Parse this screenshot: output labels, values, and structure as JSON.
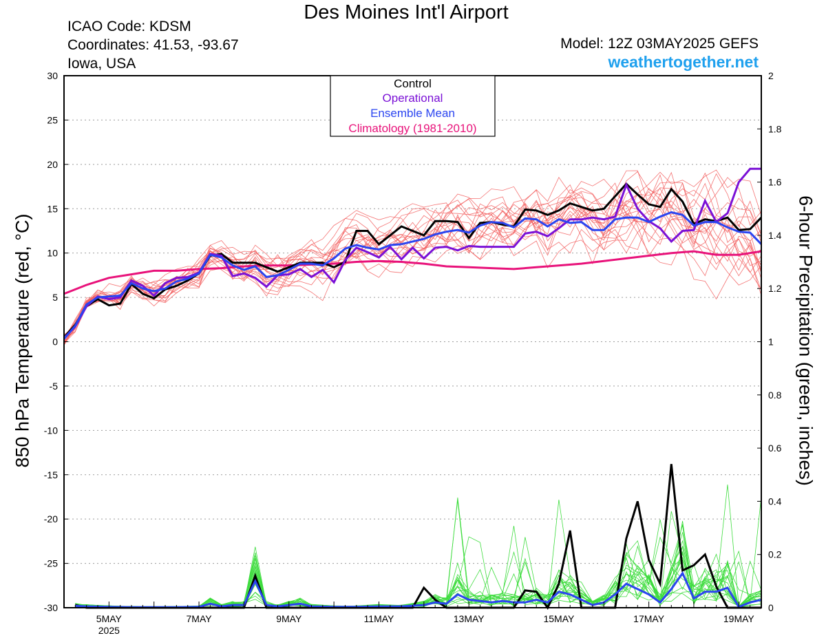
{
  "header": {
    "title": "Des Moines Int'l Airport",
    "icao": "ICAO Code: KDSM",
    "coordinates": "Coordinates: 41.53, -93.67",
    "region": "Iowa, USA",
    "model": "Model: 12Z 03MAY2025 GEFS",
    "site": "weathertogether.net"
  },
  "colors": {
    "members_temp": "#f25a5a",
    "members_precip": "#3ddc3d",
    "control": "#000000",
    "operational": "#7a10d6",
    "ensemble_mean": "#2a44f0",
    "climatology": "#e8127a",
    "grid": "#9a9a9a",
    "site": "#1ea0ee"
  },
  "chart_data": {
    "type": "line",
    "title": "Des Moines Int'l Airport",
    "xlabel": "",
    "ylabel_left": "850 hPa Temperature (red, °C)",
    "ylabel_right": "6-hour Precipitation (green, inches)",
    "x_unit": "days since 2025-05-03 12Z",
    "xlim": [
      0.5,
      16.0
    ],
    "ylim_left": [
      -30,
      30
    ],
    "ylim_right": [
      0,
      2
    ],
    "y_ticks_left": [
      30,
      25,
      20,
      15,
      10,
      5,
      0,
      -5,
      -10,
      -15,
      -20,
      -25,
      -30
    ],
    "y_ticks_right": [
      2,
      1.8,
      1.6,
      1.4,
      1.2,
      1,
      0.8,
      0.6,
      0.4,
      0.2,
      0
    ],
    "x_ticks": [
      {
        "x": 1.5,
        "label": "5MAY",
        "sub": "2025"
      },
      {
        "x": 3.5,
        "label": "7MAY",
        "sub": ""
      },
      {
        "x": 5.5,
        "label": "9MAY",
        "sub": ""
      },
      {
        "x": 7.5,
        "label": "11MAY",
        "sub": ""
      },
      {
        "x": 9.5,
        "label": "13MAY",
        "sub": ""
      },
      {
        "x": 11.5,
        "label": "15MAY",
        "sub": ""
      },
      {
        "x": 13.5,
        "label": "17MAY",
        "sub": ""
      },
      {
        "x": 15.5,
        "label": "19MAY",
        "sub": ""
      }
    ],
    "grid": "horizontal dotted",
    "legend": {
      "position": "top-center",
      "entries": [
        {
          "label": "Control",
          "color": "#000000"
        },
        {
          "label": "Operational",
          "color": "#7a10d6"
        },
        {
          "label": "Ensemble Mean",
          "color": "#2a44f0"
        },
        {
          "label": "Climatology (1981-2010)",
          "color": "#e8127a"
        }
      ]
    },
    "temperature_series": {
      "control": [
        [
          0.5,
          0.5
        ],
        [
          0.75,
          1.9
        ],
        [
          1.0,
          4.0
        ],
        [
          1.25,
          4.8
        ],
        [
          1.5,
          4.1
        ],
        [
          1.75,
          4.3
        ],
        [
          2.0,
          6.5
        ],
        [
          2.25,
          5.4
        ],
        [
          2.5,
          4.9
        ],
        [
          2.75,
          5.9
        ],
        [
          3.0,
          6.3
        ],
        [
          3.25,
          6.9
        ],
        [
          3.5,
          7.7
        ],
        [
          3.75,
          9.7
        ],
        [
          4.0,
          9.9
        ],
        [
          4.25,
          8.9
        ],
        [
          4.5,
          8.9
        ],
        [
          4.75,
          8.9
        ],
        [
          5.0,
          8.4
        ],
        [
          5.25,
          7.9
        ],
        [
          5.5,
          8.4
        ],
        [
          5.75,
          8.9
        ],
        [
          6.0,
          8.9
        ],
        [
          6.25,
          8.9
        ],
        [
          6.5,
          8.4
        ],
        [
          6.75,
          9.0
        ],
        [
          7.0,
          12.5
        ],
        [
          7.25,
          12.5
        ],
        [
          7.5,
          11.0
        ],
        [
          7.75,
          12.0
        ],
        [
          8.0,
          13.0
        ],
        [
          8.25,
          12.5
        ],
        [
          8.5,
          12.0
        ],
        [
          8.75,
          13.6
        ],
        [
          9.0,
          13.6
        ],
        [
          9.25,
          13.5
        ],
        [
          9.5,
          11.7
        ],
        [
          9.75,
          13.4
        ],
        [
          10.0,
          13.5
        ],
        [
          10.25,
          13.2
        ],
        [
          10.5,
          13.0
        ],
        [
          10.75,
          14.9
        ],
        [
          11.0,
          14.8
        ],
        [
          11.25,
          14.3
        ],
        [
          11.5,
          14.8
        ],
        [
          11.75,
          15.6
        ],
        [
          12.0,
          15.2
        ],
        [
          12.25,
          14.8
        ],
        [
          12.5,
          15.0
        ],
        [
          12.75,
          16.4
        ],
        [
          13.0,
          17.8
        ],
        [
          13.25,
          16.6
        ],
        [
          13.5,
          15.5
        ],
        [
          13.75,
          15.2
        ],
        [
          14.0,
          17.2
        ],
        [
          14.25,
          15.8
        ],
        [
          14.5,
          13.3
        ],
        [
          14.75,
          13.8
        ],
        [
          15.0,
          13.6
        ],
        [
          15.25,
          14.0
        ],
        [
          15.5,
          12.6
        ],
        [
          15.75,
          12.7
        ],
        [
          16.0,
          14.0
        ]
      ],
      "operational": [
        [
          0.5,
          0.4
        ],
        [
          0.75,
          1.7
        ],
        [
          1.0,
          4.0
        ],
        [
          1.25,
          5.1
        ],
        [
          1.5,
          4.8
        ],
        [
          1.75,
          5.0
        ],
        [
          2.0,
          6.9
        ],
        [
          2.25,
          6.3
        ],
        [
          2.5,
          5.2
        ],
        [
          2.75,
          6.6
        ],
        [
          3.0,
          7.2
        ],
        [
          3.25,
          7.3
        ],
        [
          3.5,
          7.8
        ],
        [
          3.75,
          9.9
        ],
        [
          4.0,
          9.7
        ],
        [
          4.25,
          7.4
        ],
        [
          4.5,
          7.7
        ],
        [
          4.75,
          7.2
        ],
        [
          5.0,
          6.2
        ],
        [
          5.25,
          7.5
        ],
        [
          5.5,
          7.6
        ],
        [
          5.75,
          8.2
        ],
        [
          6.0,
          7.3
        ],
        [
          6.25,
          8.1
        ],
        [
          6.5,
          6.7
        ],
        [
          6.75,
          9.2
        ],
        [
          7.0,
          10.6
        ],
        [
          7.25,
          10.1
        ],
        [
          7.5,
          9.5
        ],
        [
          7.75,
          10.7
        ],
        [
          8.0,
          9.3
        ],
        [
          8.25,
          10.6
        ],
        [
          8.5,
          9.4
        ],
        [
          8.75,
          10.6
        ],
        [
          9.0,
          10.7
        ],
        [
          9.25,
          10.3
        ],
        [
          9.5,
          10.8
        ],
        [
          9.75,
          10.7
        ],
        [
          10.0,
          10.7
        ],
        [
          10.25,
          10.7
        ],
        [
          10.5,
          10.7
        ],
        [
          10.75,
          12.2
        ],
        [
          11.0,
          12.4
        ],
        [
          11.25,
          11.9
        ],
        [
          11.5,
          12.8
        ],
        [
          11.75,
          13.8
        ],
        [
          12.0,
          13.8
        ],
        [
          12.25,
          14.0
        ],
        [
          12.5,
          13.8
        ],
        [
          12.75,
          14.1
        ],
        [
          13.0,
          17.7
        ],
        [
          13.25,
          15.0
        ],
        [
          13.5,
          13.6
        ],
        [
          13.75,
          12.8
        ],
        [
          14.0,
          11.3
        ],
        [
          14.25,
          12.5
        ],
        [
          14.5,
          12.6
        ],
        [
          14.75,
          15.9
        ],
        [
          15.0,
          13.5
        ],
        [
          15.25,
          14.5
        ],
        [
          15.5,
          18.0
        ],
        [
          15.75,
          19.5
        ],
        [
          16.0,
          19.5
        ]
      ],
      "ensemble_mean": [
        [
          0.5,
          0.3
        ],
        [
          0.75,
          1.8
        ],
        [
          1.0,
          4.2
        ],
        [
          1.25,
          5.0
        ],
        [
          1.5,
          5.1
        ],
        [
          1.75,
          5.2
        ],
        [
          2.0,
          6.6
        ],
        [
          2.25,
          6.0
        ],
        [
          2.5,
          5.7
        ],
        [
          2.75,
          6.0
        ],
        [
          3.0,
          6.8
        ],
        [
          3.25,
          7.1
        ],
        [
          3.5,
          7.7
        ],
        [
          3.75,
          9.8
        ],
        [
          4.0,
          9.5
        ],
        [
          4.25,
          8.6
        ],
        [
          4.5,
          8.1
        ],
        [
          4.75,
          8.5
        ],
        [
          5.0,
          7.3
        ],
        [
          5.25,
          7.5
        ],
        [
          5.5,
          8.1
        ],
        [
          5.75,
          8.8
        ],
        [
          6.0,
          8.8
        ],
        [
          6.25,
          8.6
        ],
        [
          6.5,
          9.4
        ],
        [
          6.75,
          10.5
        ],
        [
          7.0,
          10.9
        ],
        [
          7.25,
          10.6
        ],
        [
          7.5,
          10.4
        ],
        [
          7.75,
          10.9
        ],
        [
          8.0,
          11.0
        ],
        [
          8.25,
          11.3
        ],
        [
          8.5,
          11.6
        ],
        [
          8.75,
          12.1
        ],
        [
          9.0,
          12.4
        ],
        [
          9.25,
          12.6
        ],
        [
          9.5,
          12.3
        ],
        [
          9.75,
          13.1
        ],
        [
          10.0,
          13.5
        ],
        [
          10.25,
          13.4
        ],
        [
          10.5,
          12.9
        ],
        [
          10.75,
          13.9
        ],
        [
          11.0,
          13.8
        ],
        [
          11.25,
          13.0
        ],
        [
          11.5,
          13.8
        ],
        [
          11.75,
          13.4
        ],
        [
          12.0,
          13.5
        ],
        [
          12.25,
          12.6
        ],
        [
          12.5,
          12.6
        ],
        [
          12.75,
          13.8
        ],
        [
          13.0,
          14.0
        ],
        [
          13.25,
          14.0
        ],
        [
          13.5,
          13.5
        ],
        [
          13.75,
          14.1
        ],
        [
          14.0,
          14.6
        ],
        [
          14.25,
          14.3
        ],
        [
          14.5,
          13.1
        ],
        [
          14.75,
          13.5
        ],
        [
          15.0,
          13.5
        ],
        [
          15.25,
          12.9
        ],
        [
          15.5,
          12.4
        ],
        [
          15.75,
          12.3
        ],
        [
          16.0,
          11.0
        ]
      ],
      "climatology": [
        [
          0.5,
          5.4
        ],
        [
          1.0,
          6.4
        ],
        [
          1.5,
          7.2
        ],
        [
          2.0,
          7.6
        ],
        [
          2.5,
          8.0
        ],
        [
          3.0,
          8.0
        ],
        [
          3.5,
          8.2
        ],
        [
          4.0,
          8.3
        ],
        [
          4.5,
          8.5
        ],
        [
          5.0,
          8.6
        ],
        [
          5.5,
          8.6
        ],
        [
          6.0,
          8.7
        ],
        [
          6.5,
          8.8
        ],
        [
          7.0,
          9.0
        ],
        [
          7.5,
          9.1
        ],
        [
          8.0,
          9.0
        ],
        [
          8.5,
          8.8
        ],
        [
          9.0,
          8.5
        ],
        [
          9.5,
          8.4
        ],
        [
          10.0,
          8.3
        ],
        [
          10.5,
          8.2
        ],
        [
          11.0,
          8.4
        ],
        [
          11.5,
          8.6
        ],
        [
          12.0,
          8.8
        ],
        [
          12.5,
          9.1
        ],
        [
          13.0,
          9.4
        ],
        [
          13.5,
          9.7
        ],
        [
          14.0,
          10.0
        ],
        [
          14.5,
          10.2
        ],
        [
          15.0,
          9.8
        ],
        [
          15.5,
          9.8
        ],
        [
          16.0,
          10.2
        ]
      ]
    },
    "precipitation_series": {
      "control": [
        [
          0.75,
          0.01
        ],
        [
          1.0,
          0.0
        ],
        [
          2.0,
          0.0
        ],
        [
          3.0,
          0.0
        ],
        [
          3.5,
          0.0
        ],
        [
          3.75,
          0.0
        ],
        [
          4.0,
          0.0
        ],
        [
          4.25,
          0.0
        ],
        [
          4.5,
          0.0
        ],
        [
          4.75,
          0.12
        ],
        [
          5.0,
          0.0
        ],
        [
          5.5,
          0.0
        ],
        [
          6.0,
          0.0
        ],
        [
          6.5,
          0.0
        ],
        [
          7.0,
          0.0
        ],
        [
          7.5,
          0.0
        ],
        [
          8.0,
          0.0
        ],
        [
          8.25,
          0.0
        ],
        [
          8.5,
          0.075
        ],
        [
          8.75,
          0.03
        ],
        [
          9.0,
          0.0
        ],
        [
          9.5,
          0.0
        ],
        [
          10.0,
          0.0
        ],
        [
          10.25,
          0.0
        ],
        [
          10.5,
          0.0
        ],
        [
          10.75,
          0.065
        ],
        [
          11.0,
          0.06
        ],
        [
          11.25,
          0.0
        ],
        [
          11.5,
          0.09
        ],
        [
          11.75,
          0.29
        ],
        [
          12.0,
          0.0
        ],
        [
          12.25,
          0.0
        ],
        [
          12.5,
          0.0
        ],
        [
          12.75,
          0.0
        ],
        [
          13.0,
          0.26
        ],
        [
          13.25,
          0.4
        ],
        [
          13.5,
          0.18
        ],
        [
          13.75,
          0.09
        ],
        [
          14.0,
          0.54
        ],
        [
          14.25,
          0.14
        ],
        [
          14.5,
          0.16
        ],
        [
          14.75,
          0.2
        ],
        [
          15.0,
          0.08
        ],
        [
          15.25,
          0.0
        ],
        [
          15.5,
          0.0
        ],
        [
          15.75,
          0.0
        ],
        [
          16.0,
          0.0
        ]
      ],
      "ensemble_mean": [
        [
          0.75,
          0.007
        ],
        [
          1.0,
          0.005
        ],
        [
          1.5,
          0.003
        ],
        [
          2.0,
          0.002
        ],
        [
          3.0,
          0.002
        ],
        [
          3.5,
          0.003
        ],
        [
          3.75,
          0.015
        ],
        [
          4.0,
          0.005
        ],
        [
          4.25,
          0.01
        ],
        [
          4.5,
          0.01
        ],
        [
          4.75,
          0.1
        ],
        [
          5.0,
          0.01
        ],
        [
          5.25,
          0.005
        ],
        [
          5.5,
          0.01
        ],
        [
          5.75,
          0.015
        ],
        [
          6.0,
          0.005
        ],
        [
          6.5,
          0.003
        ],
        [
          7.0,
          0.003
        ],
        [
          7.5,
          0.005
        ],
        [
          8.0,
          0.005
        ],
        [
          8.5,
          0.01
        ],
        [
          8.75,
          0.02
        ],
        [
          9.0,
          0.015
        ],
        [
          9.25,
          0.05
        ],
        [
          9.5,
          0.03
        ],
        [
          9.75,
          0.025
        ],
        [
          10.0,
          0.02
        ],
        [
          10.25,
          0.025
        ],
        [
          10.5,
          0.02
        ],
        [
          10.75,
          0.02
        ],
        [
          11.0,
          0.03
        ],
        [
          11.25,
          0.02
        ],
        [
          11.5,
          0.06
        ],
        [
          11.75,
          0.05
        ],
        [
          12.0,
          0.03
        ],
        [
          12.25,
          0.01
        ],
        [
          12.5,
          0.02
        ],
        [
          12.75,
          0.05
        ],
        [
          13.0,
          0.09
        ],
        [
          13.25,
          0.07
        ],
        [
          13.5,
          0.05
        ],
        [
          13.75,
          0.02
        ],
        [
          14.0,
          0.07
        ],
        [
          14.25,
          0.13
        ],
        [
          14.5,
          0.035
        ],
        [
          14.75,
          0.06
        ],
        [
          15.0,
          0.06
        ],
        [
          15.25,
          0.075
        ],
        [
          15.5,
          0.003
        ],
        [
          15.75,
          0.02
        ],
        [
          16.0,
          0.03
        ]
      ]
    }
  }
}
